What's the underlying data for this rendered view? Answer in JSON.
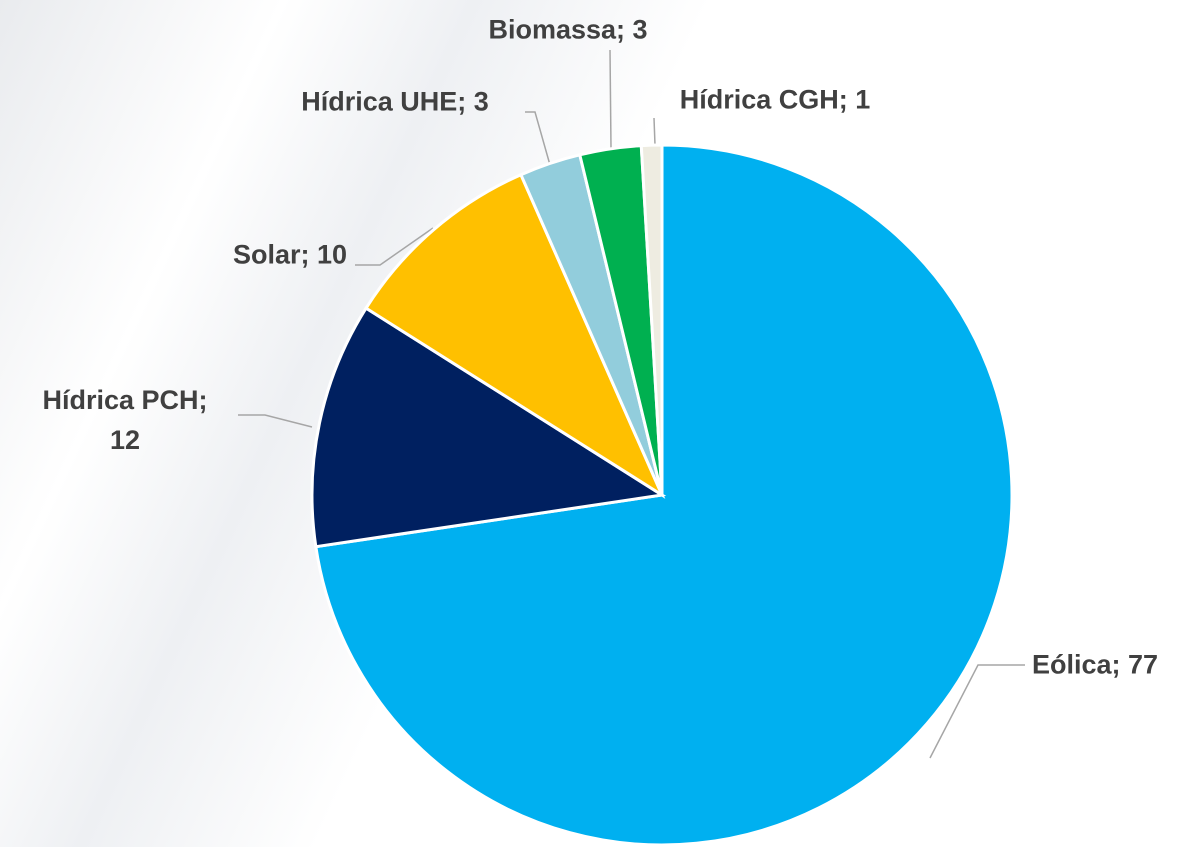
{
  "chart_data": {
    "type": "pie",
    "values": [
      77,
      12,
      10,
      3,
      3,
      1
    ],
    "value_labels": [
      "Eólica; 77",
      "Hídrica PCH; 12",
      "Solar; 10",
      "Hídrica UHE; 3",
      "Biomassa; 3",
      "Hídrica CGH; 1"
    ],
    "colors": [
      "#00b0f0",
      "#002060",
      "#ffc000",
      "#92cddc",
      "#00b050",
      "#eeece1"
    ]
  }
}
